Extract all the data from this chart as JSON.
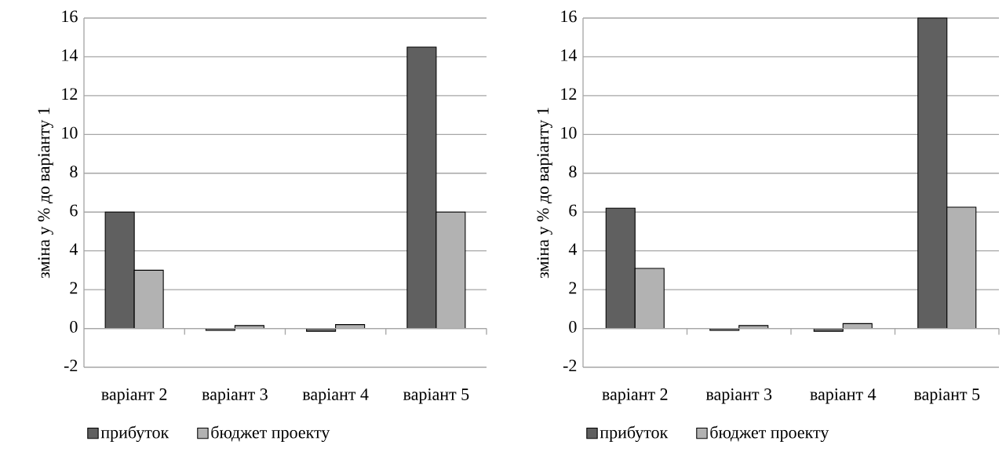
{
  "chart_data": [
    {
      "type": "bar",
      "ylabel": "зміна у % до варіанту 1",
      "categories": [
        "варіант 2",
        "варіант 3",
        "варіант 4",
        "варіант 5"
      ],
      "series": [
        {
          "name": "прибуток",
          "color": "#606060",
          "values": [
            6,
            -0.1,
            -0.15,
            14.5
          ]
        },
        {
          "name": "бюджет проекту",
          "color": "#b2b2b2",
          "values": [
            3,
            0.15,
            0.2,
            6
          ]
        }
      ],
      "ylim": [
        -2,
        16
      ],
      "yticks": [
        -2,
        0,
        2,
        4,
        6,
        8,
        10,
        12,
        14,
        16
      ],
      "grid": "y",
      "legend": "bottom"
    },
    {
      "type": "bar",
      "ylabel": "зміна у % до варіанту 1",
      "categories": [
        "варіант 2",
        "варіант 3",
        "варіант 4",
        "варіант 5"
      ],
      "series": [
        {
          "name": "прибуток",
          "color": "#606060",
          "values": [
            6.2,
            -0.1,
            -0.15,
            16
          ]
        },
        {
          "name": "бюджет проекту",
          "color": "#b2b2b2",
          "values": [
            3.1,
            0.15,
            0.25,
            6.25
          ]
        }
      ],
      "ylim": [
        -2,
        16
      ],
      "yticks": [
        -2,
        0,
        2,
        4,
        6,
        8,
        10,
        12,
        14,
        16
      ],
      "grid": "y",
      "legend": "bottom"
    }
  ]
}
